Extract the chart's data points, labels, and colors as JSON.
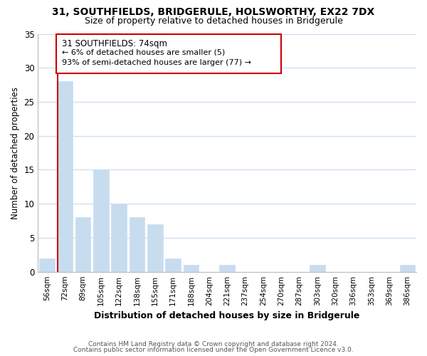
{
  "title": "31, SOUTHFIELDS, BRIDGERULE, HOLSWORTHY, EX22 7DX",
  "subtitle": "Size of property relative to detached houses in Bridgerule",
  "xlabel": "Distribution of detached houses by size in Bridgerule",
  "ylabel": "Number of detached properties",
  "bar_labels": [
    "56sqm",
    "72sqm",
    "89sqm",
    "105sqm",
    "122sqm",
    "138sqm",
    "155sqm",
    "171sqm",
    "188sqm",
    "204sqm",
    "221sqm",
    "237sqm",
    "254sqm",
    "270sqm",
    "287sqm",
    "303sqm",
    "320sqm",
    "336sqm",
    "353sqm",
    "369sqm",
    "386sqm"
  ],
  "bar_values": [
    2,
    28,
    8,
    15,
    10,
    8,
    7,
    2,
    1,
    0,
    1,
    0,
    0,
    0,
    0,
    1,
    0,
    0,
    0,
    0,
    1
  ],
  "bar_color": "#c8dcf0",
  "vline_color": "#cc0000",
  "annotation_title": "31 SOUTHFIELDS: 74sqm",
  "annotation_line1": "← 6% of detached houses are smaller (5)",
  "annotation_line2": "93% of semi-detached houses are larger (77) →",
  "annotation_box_color": "#ffffff",
  "annotation_box_edge": "#cc0000",
  "ylim": [
    0,
    35
  ],
  "yticks": [
    0,
    5,
    10,
    15,
    20,
    25,
    30,
    35
  ],
  "footer_line1": "Contains HM Land Registry data © Crown copyright and database right 2024.",
  "footer_line2": "Contains public sector information licensed under the Open Government Licence v3.0.",
  "background_color": "#ffffff",
  "grid_color": "#c8dcf0"
}
